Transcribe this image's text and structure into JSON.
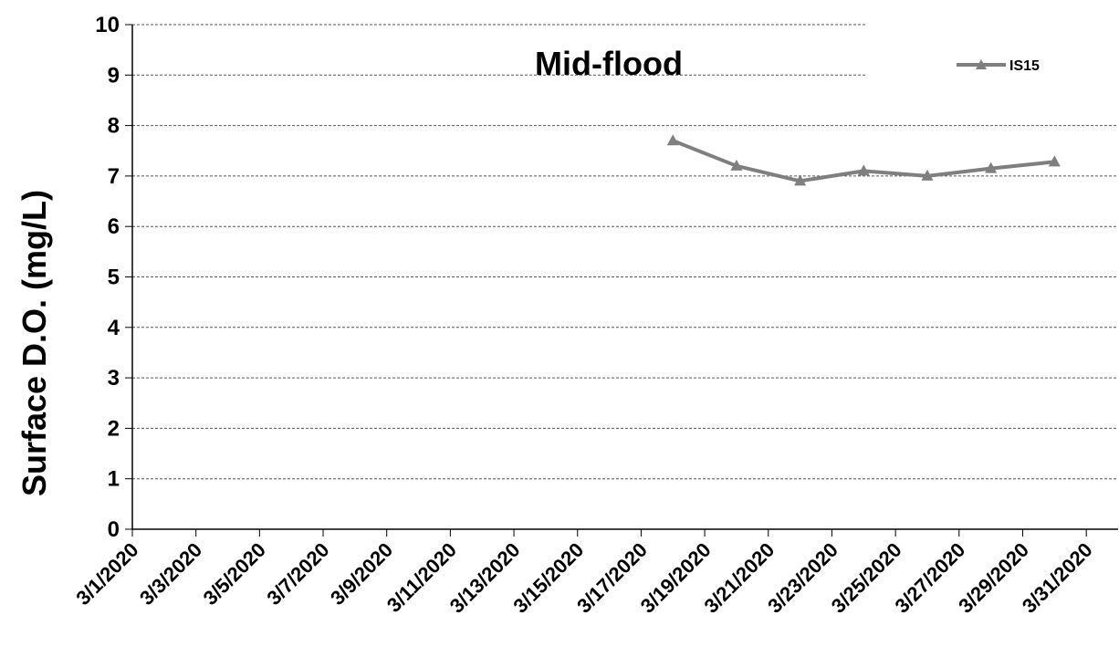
{
  "chart_data": {
    "type": "line",
    "title": "Mid-flood",
    "xlabel": "",
    "ylabel": "Surface D.O. (mg/L)",
    "ylim": [
      0,
      10
    ],
    "yticks": [
      "0",
      "1",
      "2",
      "3",
      "4",
      "5",
      "6",
      "7",
      "8",
      "9",
      "10"
    ],
    "xlim": [
      "2020-03-01",
      "2020-04-01"
    ],
    "xticks": [
      {
        "date": "2020-03-01",
        "label": "3/1/2020"
      },
      {
        "date": "2020-03-03",
        "label": "3/3/2020"
      },
      {
        "date": "2020-03-05",
        "label": "3/5/2020"
      },
      {
        "date": "2020-03-07",
        "label": "3/7/2020"
      },
      {
        "date": "2020-03-09",
        "label": "3/9/2020"
      },
      {
        "date": "2020-03-11",
        "label": "3/11/2020"
      },
      {
        "date": "2020-03-13",
        "label": "3/13/2020"
      },
      {
        "date": "2020-03-15",
        "label": "3/15/2020"
      },
      {
        "date": "2020-03-17",
        "label": "3/17/2020"
      },
      {
        "date": "2020-03-19",
        "label": "3/19/2020"
      },
      {
        "date": "2020-03-21",
        "label": "3/21/2020"
      },
      {
        "date": "2020-03-23",
        "label": "3/23/2020"
      },
      {
        "date": "2020-03-25",
        "label": "3/25/2020"
      },
      {
        "date": "2020-03-27",
        "label": "3/27/2020"
      },
      {
        "date": "2020-03-29",
        "label": "3/29/2020"
      },
      {
        "date": "2020-03-31",
        "label": "3/31/2020"
      }
    ],
    "grid": "horizontal dashed",
    "legend": "top-right",
    "series": [
      {
        "name": "IS15",
        "color": "#7f7f7f",
        "marker": "triangle",
        "points": [
          {
            "x": "2020-03-18",
            "y": 7.7
          },
          {
            "x": "2020-03-20",
            "y": 7.2
          },
          {
            "x": "2020-03-22",
            "y": 6.9
          },
          {
            "x": "2020-03-24",
            "y": 7.1
          },
          {
            "x": "2020-03-26",
            "y": 7.0
          },
          {
            "x": "2020-03-28",
            "y": 7.15
          },
          {
            "x": "2020-03-30",
            "y": 7.28
          }
        ]
      }
    ]
  }
}
